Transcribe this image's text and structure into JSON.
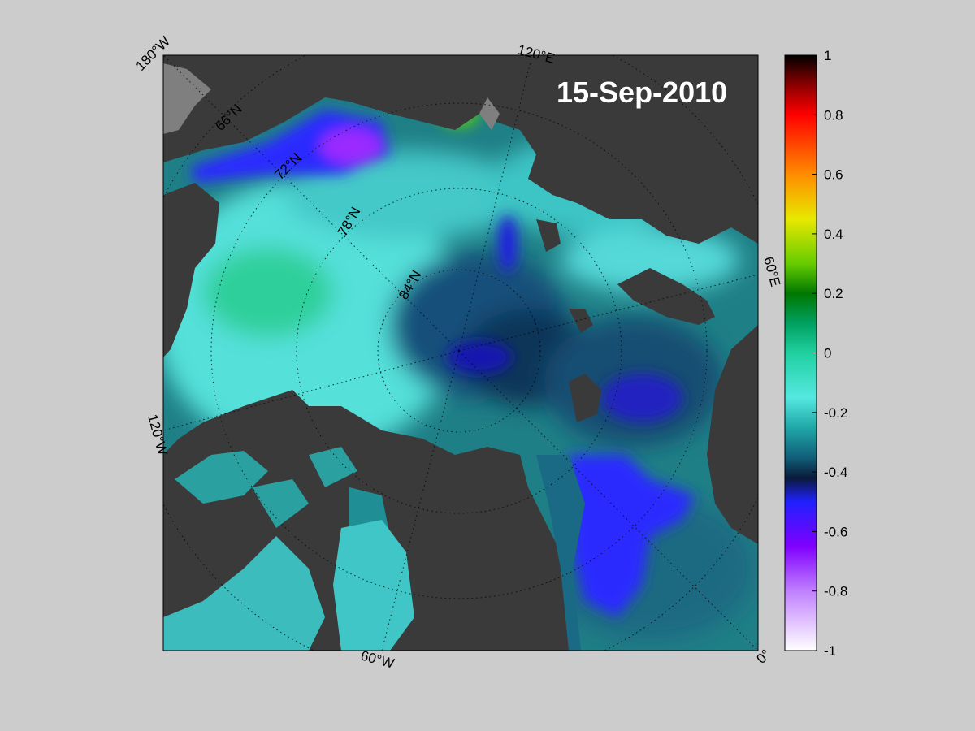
{
  "title": {
    "date": "15-Sep-2010"
  },
  "map": {
    "projection": "north-polar-stereographic",
    "longitude_labels": {
      "lon_180": "180°W",
      "lon_120e": "120°E",
      "lon_60e": "60°E",
      "lon_120w": "120°W",
      "lon_60w": "60°W",
      "lon_0": "0°"
    },
    "latitude_labels": {
      "lat_66": "66°N",
      "lat_72": "72°N",
      "lat_78": "78°N",
      "lat_84": "84°N"
    },
    "colors": {
      "land": "#3a3a3a",
      "land_mask": "#7f7f7f",
      "background": "#cccccc"
    }
  },
  "colorbar": {
    "ticks": [
      "1",
      "0.8",
      "0.6",
      "0.4",
      "0.2",
      "0",
      "-0.2",
      "-0.4",
      "-0.6",
      "-0.8",
      "-1"
    ],
    "range": [
      -1,
      1
    ],
    "stops": [
      {
        "value": 1.0,
        "color": "#000000"
      },
      {
        "value": 0.9,
        "color": "#8b0000"
      },
      {
        "value": 0.8,
        "color": "#ff0000"
      },
      {
        "value": 0.6,
        "color": "#ff8c00"
      },
      {
        "value": 0.45,
        "color": "#e8e800"
      },
      {
        "value": 0.3,
        "color": "#66cc00"
      },
      {
        "value": 0.2,
        "color": "#007700"
      },
      {
        "value": 0.1,
        "color": "#00a060"
      },
      {
        "value": 0.0,
        "color": "#20d0a0"
      },
      {
        "value": -0.15,
        "color": "#55e8e0"
      },
      {
        "value": -0.25,
        "color": "#20a8a8"
      },
      {
        "value": -0.35,
        "color": "#10607a"
      },
      {
        "value": -0.42,
        "color": "#0a1a3a"
      },
      {
        "value": -0.5,
        "color": "#2020ff"
      },
      {
        "value": -0.65,
        "color": "#8000ff"
      },
      {
        "value": -0.8,
        "color": "#c080ff"
      },
      {
        "value": -1.0,
        "color": "#ffffff"
      }
    ]
  }
}
